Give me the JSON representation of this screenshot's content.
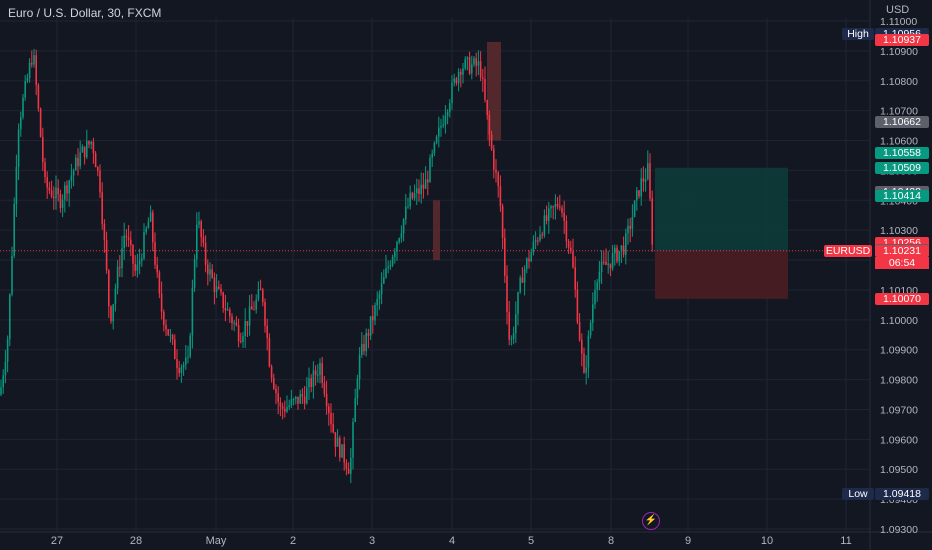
{
  "header": {
    "title": "Euro / U.S. Dollar, 30, FXCM",
    "currency": "USD"
  },
  "symbol": "EURUSD",
  "countdown": "06:54",
  "colors": {
    "background": "#131722",
    "up": "#089981",
    "down": "#f23645",
    "grid": "#1f2433",
    "text": "#b2b5be",
    "highlow_label": "#1e2a4a",
    "gray_tag": "#5d606b",
    "target_zone": "#0d3b3a",
    "stop_zone": "#4a1d22"
  },
  "price_tags": [
    {
      "id": "high_label",
      "side": "High",
      "value": "1.10956",
      "color": "#1e2a4a"
    },
    {
      "id": "p1",
      "value": "1.10937",
      "color": "#f23645"
    },
    {
      "id": "p2",
      "value": "1.10662",
      "color": "#5d606b"
    },
    {
      "id": "p3",
      "value": "1.10558",
      "color": "#089981"
    },
    {
      "id": "p4",
      "value": "1.10509",
      "color": "#089981"
    },
    {
      "id": "p5",
      "value": "1.10428",
      "color": "#5d606b"
    },
    {
      "id": "p6",
      "value": "1.10414",
      "color": "#089981"
    },
    {
      "id": "p7",
      "value": "1.10256",
      "color": "#f23645"
    },
    {
      "id": "p8",
      "value": "1.10233",
      "color": "#5d606b"
    },
    {
      "id": "p9",
      "value": "1.10231",
      "color": "#f23645"
    },
    {
      "id": "p10",
      "value": "1.10070",
      "color": "#f23645"
    },
    {
      "id": "low_label",
      "side": "Low",
      "value": "1.09418",
      "color": "#1e2a4a"
    }
  ],
  "chart_data": {
    "type": "candlestick",
    "interval": "30",
    "x_tick_labels": [
      "27",
      "28",
      "May",
      "2",
      "3",
      "4",
      "5",
      "8",
      "9",
      "10",
      "11"
    ],
    "y_tick_labels": [
      "1.11000",
      "1.10900",
      "1.10800",
      "1.10700",
      "1.10600",
      "1.10500",
      "1.10400",
      "1.10300",
      "1.10200",
      "1.10100",
      "1.10000",
      "1.09900",
      "1.09800",
      "1.09700",
      "1.09600",
      "1.09500",
      "1.09400",
      "1.09300"
    ],
    "ylim": [
      1.0929,
      1.1101
    ],
    "grid": true,
    "current_price": 1.10231,
    "position": {
      "entry": 1.10231,
      "target": 1.10509,
      "stop": 1.1007,
      "x_start": "8",
      "x_end": "10"
    },
    "series_path": [
      {
        "x": "26",
        "y": 1.0975
      },
      {
        "x": "26.2",
        "y": 1.0995
      },
      {
        "x": "26.4",
        "y": 1.1065
      },
      {
        "x": "26.5",
        "y": 1.109
      },
      {
        "x": "26.7",
        "y": 1.1045
      },
      {
        "x": "26.9",
        "y": 1.104
      },
      {
        "x": "27.1",
        "y": 1.1055
      },
      {
        "x": "27.3",
        "y": 1.106
      },
      {
        "x": "27.5",
        "y": 1.1045
      },
      {
        "x": "27.6",
        "y": 1.1
      },
      {
        "x": "27.8",
        "y": 1.103
      },
      {
        "x": "28",
        "y": 1.1015
      },
      {
        "x": "28.2",
        "y": 1.1035
      },
      {
        "x": "28.4",
        "y": 1.1005
      },
      {
        "x": "28.6",
        "y": 1.0985
      },
      {
        "x": "28.8",
        "y": 1.099
      },
      {
        "x": "29",
        "y": 1.101
      },
      {
        "x": "29.2",
        "y": 1.1035
      },
      {
        "x": "29.4",
        "y": 1.102
      },
      {
        "x": "29.7",
        "y": 1.1005
      },
      {
        "x": "1",
        "y": 1.1
      },
      {
        "x": "1.3",
        "y": 1.099
      },
      {
        "x": "1.6",
        "y": 1.0975
      },
      {
        "x": "1.9",
        "y": 1.097
      },
      {
        "x": "2",
        "y": 1.0975
      },
      {
        "x": "2.3",
        "y": 1.0985
      },
      {
        "x": "2.6",
        "y": 1.096
      },
      {
        "x": "2.9",
        "y": 1.095
      },
      {
        "x": "3",
        "y": 1.0985
      },
      {
        "x": "3.2",
        "y": 1.1005
      },
      {
        "x": "3.4",
        "y": 1.102
      },
      {
        "x": "3.6",
        "y": 1.1045
      },
      {
        "x": "3.8",
        "y": 1.105
      },
      {
        "x": "4",
        "y": 1.107
      },
      {
        "x": "4.2",
        "y": 1.1085
      },
      {
        "x": "4.4",
        "y": 1.1085
      },
      {
        "x": "4.5",
        "y": 1.1055
      },
      {
        "x": "4.6",
        "y": 1.104
      },
      {
        "x": "4.8",
        "y": 1.0995
      },
      {
        "x": "5",
        "y": 1.102
      },
      {
        "x": "5.3",
        "y": 1.1035
      },
      {
        "x": "5.6",
        "y": 1.104
      },
      {
        "x": "5.8",
        "y": 1.102
      },
      {
        "x": "6",
        "y": 1.0985
      },
      {
        "x": "6.2",
        "y": 1.1015
      },
      {
        "x": "6.5",
        "y": 1.102
      },
      {
        "x": "7",
        "y": 1.103
      },
      {
        "x": "7.5",
        "y": 1.1045
      },
      {
        "x": "8",
        "y": 1.105
      },
      {
        "x": "8.3",
        "y": 1.1023
      }
    ]
  }
}
